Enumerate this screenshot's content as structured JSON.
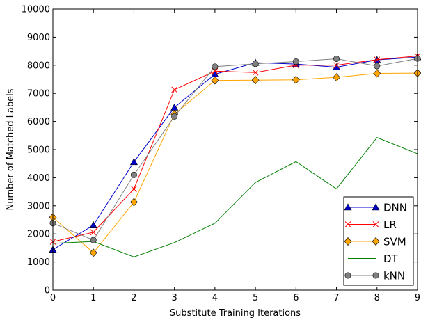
{
  "chart_data": {
    "type": "line",
    "xlabel": "Substitute Training Iterations",
    "ylabel": "Number of Matched Labels",
    "xlim": [
      0,
      9
    ],
    "ylim": [
      0,
      10000
    ],
    "x_ticks": [
      "0",
      "1",
      "2",
      "3",
      "4",
      "5",
      "6",
      "7",
      "8",
      "9"
    ],
    "y_ticks": [
      "0",
      "1000",
      "2000",
      "3000",
      "4000",
      "5000",
      "6000",
      "7000",
      "8000",
      "9000",
      "10000"
    ],
    "grid": false,
    "legend_position": "bottom-right",
    "x": [
      0,
      1,
      2,
      3,
      4,
      5,
      6,
      7,
      8,
      9
    ],
    "series": [
      {
        "name": "DNN",
        "color": "#0000cc",
        "marker": "triangle",
        "values": [
          1440,
          2310,
          4560,
          6500,
          7680,
          8090,
          8040,
          7930,
          8190,
          8290
        ]
      },
      {
        "name": "LR",
        "color": "#ff0000",
        "marker": "x",
        "values": [
          1720,
          2060,
          3600,
          7130,
          7790,
          7740,
          8000,
          8000,
          8200,
          8330
        ]
      },
      {
        "name": "SVM",
        "color": "#ffa500",
        "marker": "diamond",
        "values": [
          2590,
          1330,
          3130,
          6260,
          7460,
          7470,
          7480,
          7570,
          7710,
          7720
        ]
      },
      {
        "name": "DT",
        "color": "#008000",
        "marker": "none",
        "values": [
          1660,
          1730,
          1180,
          1690,
          2380,
          3830,
          4570,
          3600,
          5430,
          4850
        ]
      },
      {
        "name": "kNN",
        "color": "#808080",
        "marker": "circle",
        "values": [
          2380,
          1780,
          4100,
          6180,
          7950,
          8050,
          8130,
          8230,
          7970,
          8240
        ]
      }
    ]
  }
}
